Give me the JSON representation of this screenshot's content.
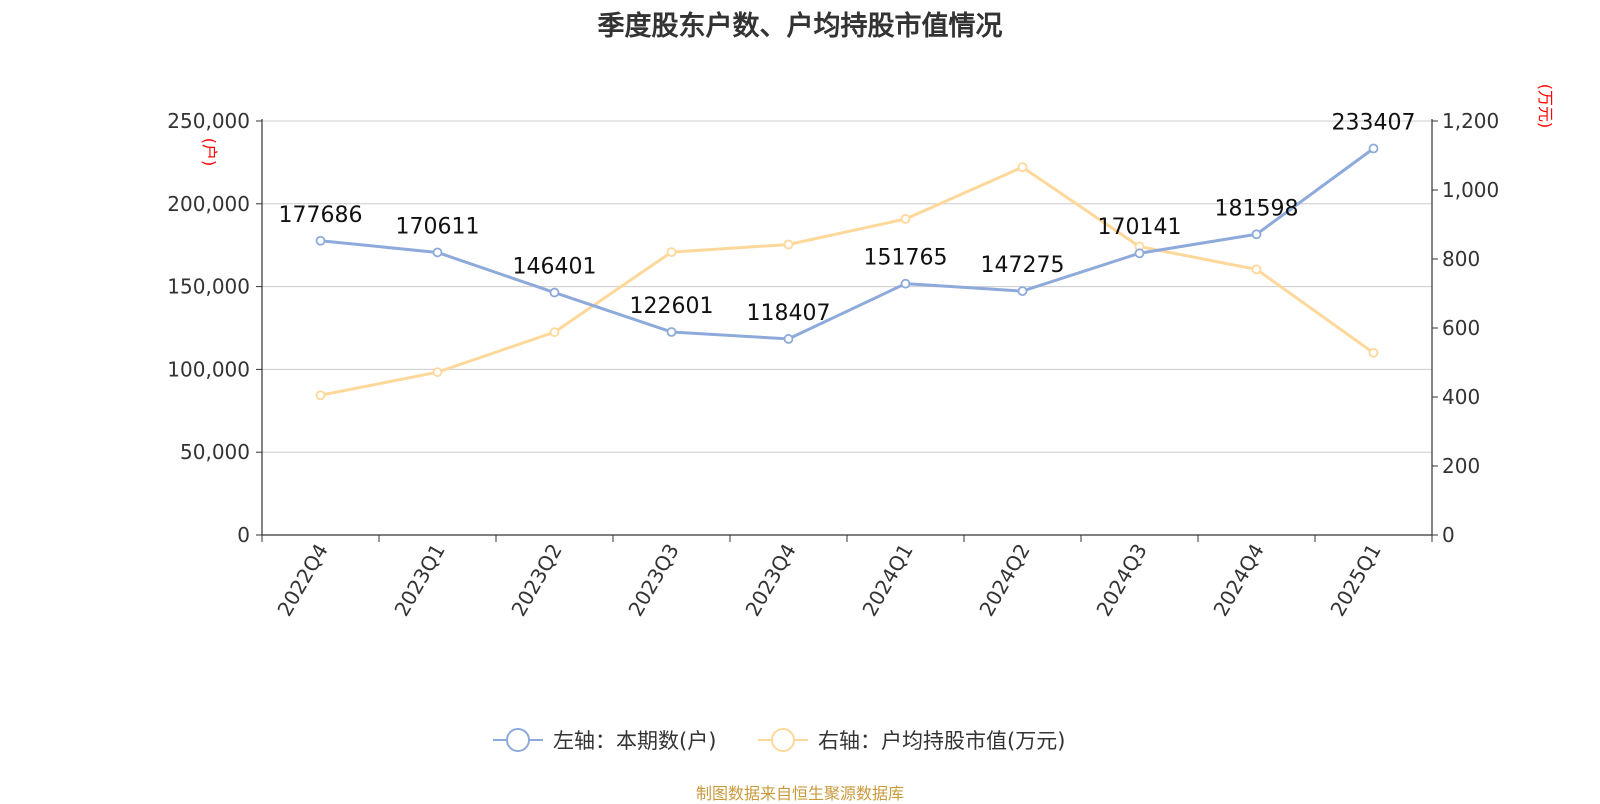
{
  "chart_data": {
    "type": "line",
    "title": "季度股东户数、户均持股市值情况",
    "categories": [
      "2022Q4",
      "2023Q1",
      "2023Q2",
      "2023Q3",
      "2023Q4",
      "2024Q1",
      "2024Q2",
      "2024Q3",
      "2024Q4",
      "2025Q1"
    ],
    "series": [
      {
        "name": "左轴：本期数(户)",
        "axis": "left",
        "color": "#8eaadb",
        "values": [
          177686,
          170611,
          146401,
          122601,
          118407,
          151765,
          147275,
          170141,
          181598,
          233407
        ],
        "data_labels": [
          "177686",
          "170611",
          "146401",
          "122601",
          "118407",
          "151765",
          "147275",
          "170141",
          "181598",
          "233407"
        ]
      },
      {
        "name": "右轴：户均持股市值(万元)",
        "axis": "right",
        "color": "#fdd89a",
        "values": [
          405,
          472,
          588,
          820,
          842,
          916,
          1066,
          836,
          770,
          528
        ]
      }
    ],
    "y_left": {
      "label": "(户)",
      "ylim": [
        0,
        250000
      ],
      "ticks": [
        0,
        50000,
        100000,
        150000,
        200000,
        250000
      ],
      "tick_labels": [
        "0",
        "50,000",
        "100,000",
        "150,000",
        "200,000",
        "250,000"
      ]
    },
    "y_right": {
      "label": "(万元)",
      "ylim": [
        0,
        1200
      ],
      "ticks": [
        0,
        200,
        400,
        600,
        800,
        1000,
        1200
      ],
      "tick_labels": [
        "0",
        "200",
        "400",
        "600",
        "800",
        "1,000",
        "1,200"
      ]
    },
    "grid": true,
    "legend_position": "bottom-center",
    "source": "制图数据来自恒生聚源数据库",
    "axis_label_color": "#ff0000",
    "axis_color": "#333333",
    "grid_color": "#cccccc"
  }
}
